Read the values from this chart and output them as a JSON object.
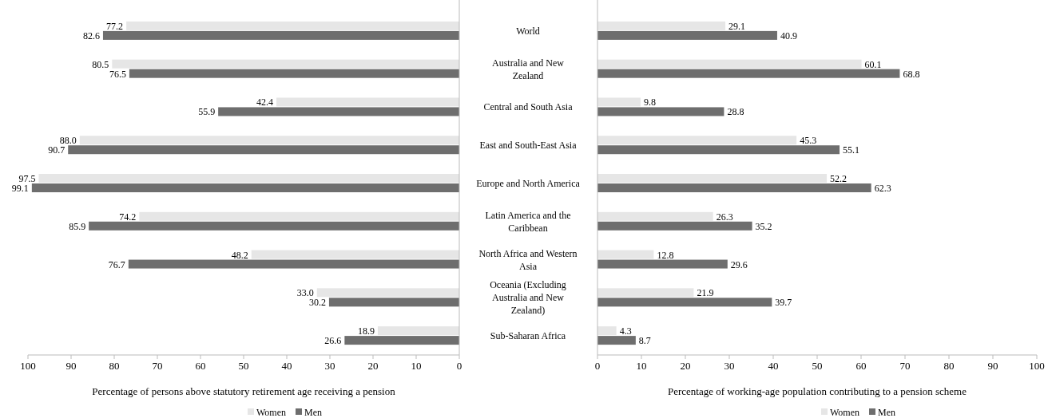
{
  "chart_data": [
    {
      "type": "bar",
      "orientation": "horizontal",
      "xlabel": "Percentage of persons above statutory retirement age receiving  a pension",
      "categories": [
        "World",
        "Australia and New Zealand",
        "Central and South Asia",
        "East and South-East Asia",
        "Europe and North America",
        "Latin America and the Caribbean",
        "North Africa and Western Asia",
        "Oceania (Excluding Australia and New Zealand)",
        "Sub-Saharan Africa"
      ],
      "series": [
        {
          "name": "Women",
          "color": "#e6e6e6",
          "values": [
            77.2,
            80.5,
            42.4,
            88.0,
            97.5,
            74.2,
            48.2,
            33.0,
            18.9
          ],
          "value_labels": [
            "77.2",
            "80.5",
            "42.4",
            "88.0",
            "97.5",
            "74.2",
            "48.2",
            "33.0",
            "18.9"
          ]
        },
        {
          "name": "Men",
          "color": "#6e6e6e",
          "values": [
            82.6,
            76.5,
            55.9,
            90.7,
            99.1,
            85.9,
            76.7,
            30.2,
            26.6
          ],
          "value_labels": [
            "82.6",
            "76.5",
            "55.9",
            "90.7",
            "99.1",
            "85.9",
            "76.7",
            "30.2",
            "26.6"
          ]
        }
      ],
      "xlim": [
        100,
        0
      ],
      "xticks": [
        100,
        90,
        80,
        70,
        60,
        50,
        40,
        30,
        20,
        10,
        0
      ],
      "tick_labels": "x",
      "legend": "bottom"
    },
    {
      "type": "bar",
      "orientation": "horizontal",
      "xlabel": "Percentage of working-age population  contributing  to a pension scheme",
      "categories": [
        "World",
        "Australia and New Zealand",
        "Central and South Asia",
        "East and South-East Asia",
        "Europe and North America",
        "Latin America and the Caribbean",
        "North Africa and Western Asia",
        "Oceania (Excluding Australia and New Zealand)",
        "Sub-Saharan Africa"
      ],
      "series": [
        {
          "name": "Women",
          "color": "#e6e6e6",
          "values": [
            29.1,
            60.1,
            9.8,
            45.3,
            52.2,
            26.3,
            12.8,
            21.9,
            4.3
          ]
        },
        {
          "name": "Men",
          "color": "#6e6e6e",
          "values": [
            40.9,
            68.8,
            28.8,
            55.1,
            62.3,
            35.2,
            29.6,
            39.7,
            8.7
          ]
        }
      ],
      "xlim": [
        0,
        100
      ],
      "xticks": [
        0,
        10,
        20,
        30,
        40,
        50,
        60,
        70,
        80,
        90,
        100
      ],
      "data_labels": true,
      "legend": "bottom"
    }
  ]
}
